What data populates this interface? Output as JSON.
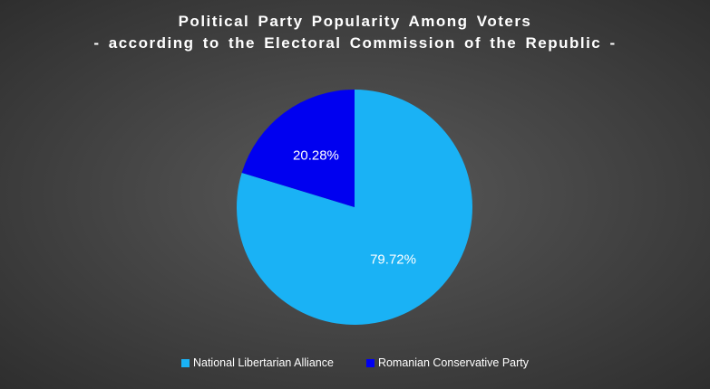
{
  "chart_data": {
    "type": "pie",
    "title": "Political Party Popularity Among Voters",
    "subtitle": "- according to the Electoral Commission of the Republic -",
    "slices": [
      {
        "label": "National Libertarian Alliance",
        "value": 79.72,
        "value_label": "79.72%",
        "color": "#1ab2f5"
      },
      {
        "label": "Romanian Conservative Party",
        "value": 20.28,
        "value_label": "20.28%",
        "color": "#0000f0"
      }
    ],
    "legend_position": "bottom",
    "start_angle": "12 o'clock, clockwise"
  }
}
